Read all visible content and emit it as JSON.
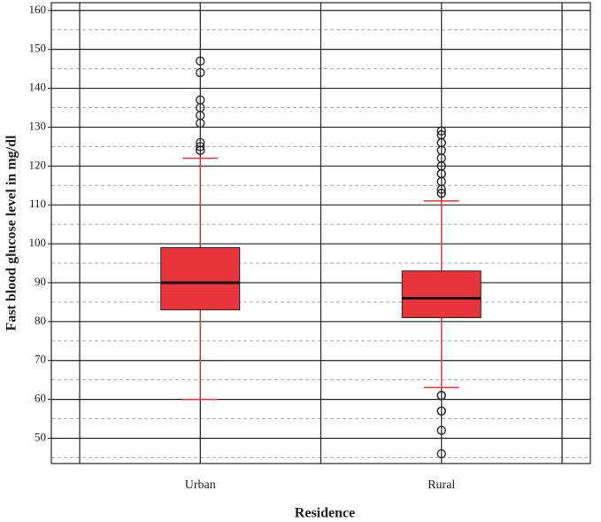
{
  "chart_data": {
    "type": "box",
    "x_label": "Residence",
    "y_label": "Fast blood glucose level in mg/dl",
    "categories": [
      "Urban",
      "Rural"
    ],
    "boxes": [
      {
        "whislo": 60,
        "q1": 83,
        "med": 90,
        "q3": 99,
        "whishi": 122,
        "fliers": [
          124,
          124,
          125,
          126,
          131,
          133,
          135,
          137,
          144,
          147
        ]
      },
      {
        "whislo": 63,
        "q1": 81,
        "med": 86,
        "q3": 93,
        "whishi": 111,
        "fliers": [
          113,
          113,
          114,
          116,
          118,
          118,
          120,
          122,
          124,
          126,
          126,
          128,
          129,
          61,
          61,
          57,
          57,
          52,
          46
        ]
      }
    ],
    "color": "#e8343b",
    "whisker_color": "#e8343b",
    "ylim": [
      43.5,
      162
    ],
    "yticks": [
      50,
      60,
      70,
      80,
      90,
      100,
      110,
      120,
      130,
      140,
      150,
      160
    ],
    "minor_yticks": [
      45,
      55,
      65,
      75,
      85,
      95,
      105,
      115,
      125,
      135,
      145,
      155
    ],
    "grid": true
  }
}
